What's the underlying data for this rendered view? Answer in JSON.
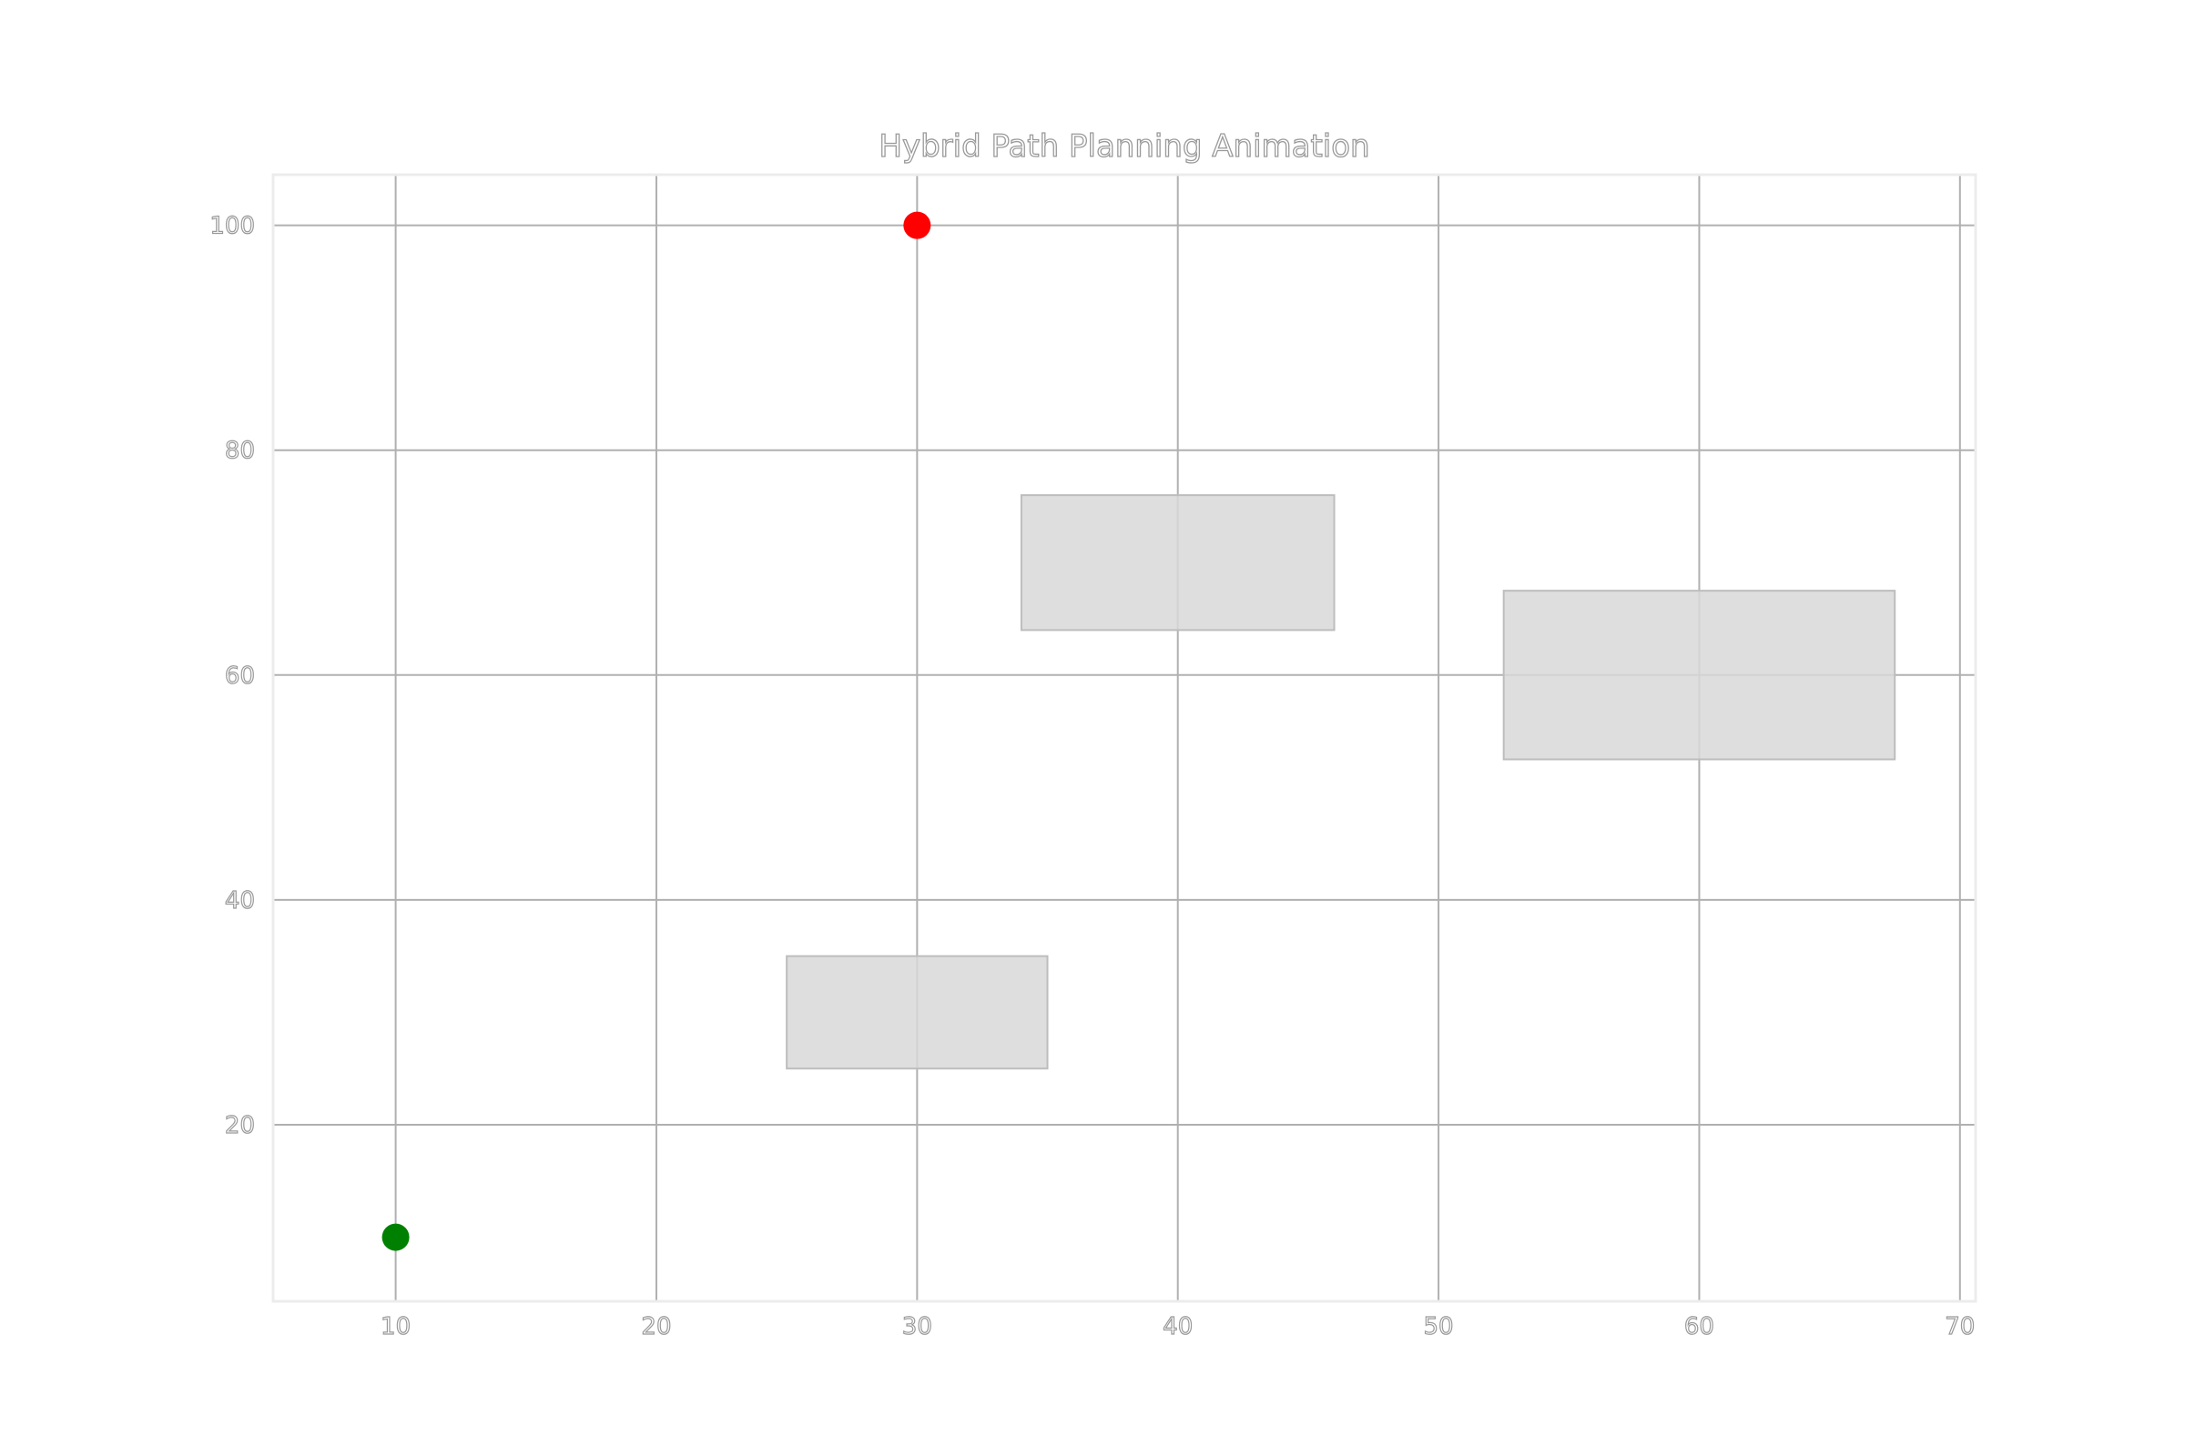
{
  "chart_data": {
    "type": "scatter",
    "title": "Hybrid Path Planning Animation",
    "xlabel": "",
    "ylabel": "",
    "xlim": [
      5.3,
      70.6
    ],
    "ylim": [
      4.3,
      104.5
    ],
    "xticks": [
      10,
      20,
      30,
      40,
      50,
      60,
      70
    ],
    "yticks": [
      20,
      40,
      60,
      80,
      100
    ],
    "grid": true,
    "obstacles": [
      {
        "x_min": 25,
        "x_max": 35,
        "y_min": 25,
        "y_max": 35
      },
      {
        "x_min": 34,
        "x_max": 46,
        "y_min": 64,
        "y_max": 76
      },
      {
        "x_min": 52.5,
        "x_max": 67.5,
        "y_min": 52.5,
        "y_max": 67.5
      }
    ],
    "points": [
      {
        "x": 10,
        "y": 10,
        "color": "#008000"
      },
      {
        "x": 30,
        "y": 100,
        "color": "#ff0000"
      }
    ],
    "obstacle_color": "#d8d8d8"
  }
}
